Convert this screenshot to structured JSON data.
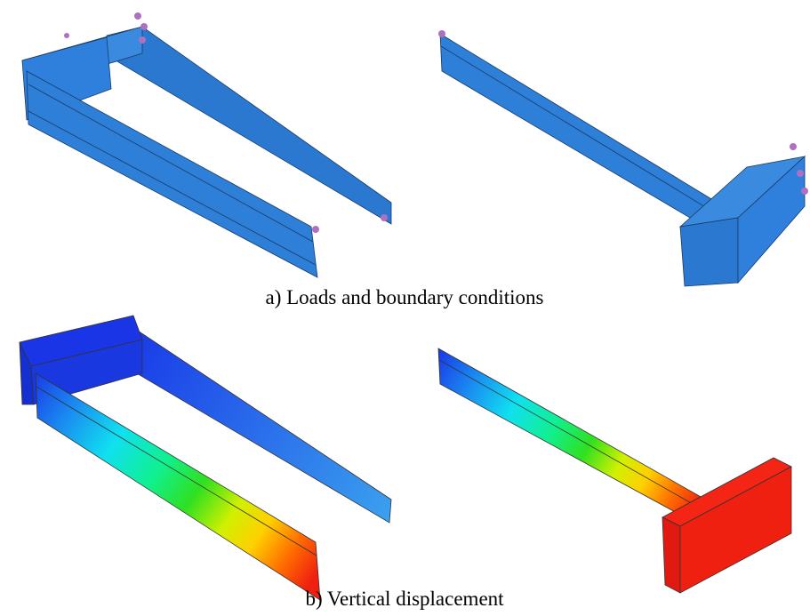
{
  "captions": [
    "a) Loads and boundary conditions",
    "b) Vertical displacement"
  ]
}
